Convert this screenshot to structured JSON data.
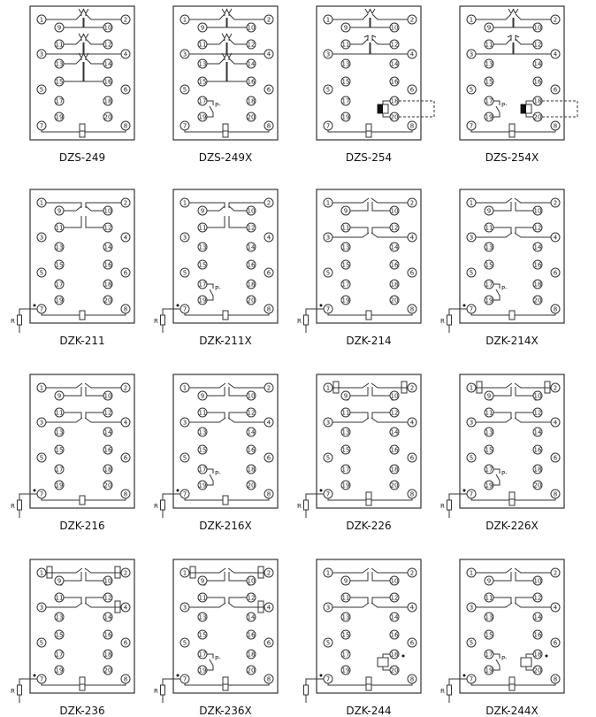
{
  "labels": {
    "resistor": "R",
    "pressure_contact": "P-"
  },
  "terminals": [
    "1",
    "2",
    "3",
    "4",
    "5",
    "6",
    "7",
    "8",
    "9",
    "10",
    "11",
    "12",
    "13",
    "14",
    "15",
    "16",
    "17",
    "18",
    "19",
    "20"
  ],
  "panels": [
    {
      "title": "DZS-249",
      "contacts": "dzs249",
      "bottom": "cap",
      "resistor": false,
      "p_contact": false,
      "coil": false,
      "markers": []
    },
    {
      "title": "DZS-249X",
      "contacts": "dzs249",
      "bottom": "cap",
      "resistor": false,
      "p_contact": true,
      "coil": false,
      "markers": []
    },
    {
      "title": "DZS-254",
      "contacts": "dzs254",
      "bottom": "cap",
      "resistor": false,
      "p_contact": false,
      "coil": "dashed",
      "markers": []
    },
    {
      "title": "DZS-254X",
      "contacts": "dzs254",
      "bottom": "cap",
      "resistor": false,
      "p_contact": true,
      "coil": "dashed",
      "markers": []
    },
    {
      "title": "DZK-211",
      "contacts": "k211",
      "bottom": "rect",
      "resistor": true,
      "r_label": true,
      "p_contact": false,
      "coil": false,
      "markers": []
    },
    {
      "title": "DZK-211X",
      "contacts": "k211",
      "bottom": "rect",
      "resistor": true,
      "r_label": true,
      "p_contact": true,
      "coil": false,
      "markers": []
    },
    {
      "title": "DZK-214",
      "contacts": "k214",
      "bottom": "rect",
      "resistor": true,
      "r_label": true,
      "p_contact": false,
      "coil": false,
      "markers": []
    },
    {
      "title": "DZK-214X",
      "contacts": "k214",
      "bottom": "rect",
      "resistor": true,
      "r_label": true,
      "p_contact": true,
      "coil": false,
      "markers": []
    },
    {
      "title": "DZK-216",
      "contacts": "k214",
      "bottom": "rect",
      "resistor": true,
      "r_label": true,
      "p_contact": false,
      "coil": false,
      "markers": []
    },
    {
      "title": "DZK-216X",
      "contacts": "k214",
      "bottom": "rect",
      "resistor": true,
      "r_label": true,
      "p_contact": true,
      "coil": false,
      "markers": []
    },
    {
      "title": "DZK-226",
      "contacts": "k214",
      "bottom": "cap",
      "resistor": true,
      "r_label": true,
      "p_contact": false,
      "coil": false,
      "markers": [
        "1",
        "2"
      ]
    },
    {
      "title": "DZK-226X",
      "contacts": "k214",
      "bottom": "cap",
      "resistor": true,
      "r_label": true,
      "p_contact": true,
      "coil": false,
      "markers": [
        "1",
        "2"
      ]
    },
    {
      "title": "DZK-236",
      "contacts": "k214",
      "bottom": "cap",
      "resistor": true,
      "r_label": true,
      "p_contact": false,
      "coil": false,
      "markers": [
        "1",
        "2",
        "4"
      ]
    },
    {
      "title": "DZK-236X",
      "contacts": "k214",
      "bottom": "cap",
      "resistor": true,
      "r_label": true,
      "p_contact": true,
      "coil": false,
      "markers": [
        "1",
        "2",
        "4"
      ]
    },
    {
      "title": "DZK-244",
      "contacts": "k214",
      "bottom": "cap",
      "resistor": true,
      "r_label": false,
      "p_contact": false,
      "coil": "solid",
      "markers": []
    },
    {
      "title": "DZK-244X",
      "contacts": "k214",
      "bottom": "cap",
      "resistor": true,
      "r_label": true,
      "p_contact": true,
      "coil": "solid",
      "markers": []
    }
  ]
}
